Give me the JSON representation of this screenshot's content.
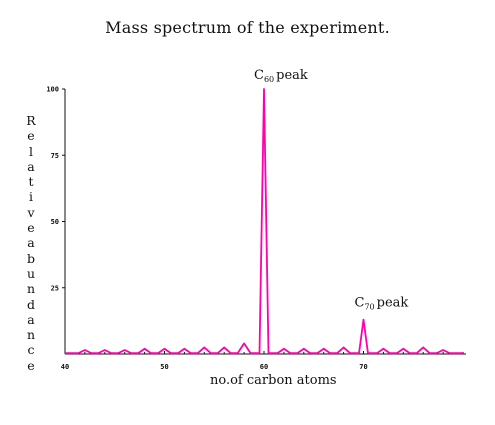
{
  "chart_data": {
    "type": "line",
    "title": "Mass spectrum of the experiment.",
    "xlabel": "no.of carbon atoms",
    "ylabel": "Relative abundance",
    "xlim": [
      40,
      80
    ],
    "ylim": [
      0,
      100
    ],
    "x_ticks": [
      "40",
      "50",
      "60",
      "70"
    ],
    "y_ticks": [
      "25",
      "50",
      "75",
      "100"
    ],
    "grid": false,
    "color": "#ff00aa",
    "series": [
      {
        "x": [
          42,
          44,
          46,
          48,
          50,
          52,
          54,
          56,
          58,
          60,
          62,
          64,
          66,
          68,
          70,
          72,
          74,
          76,
          78
        ],
        "values": [
          1.5,
          1.5,
          1.5,
          2,
          2,
          2,
          2.5,
          2.5,
          4,
          100,
          2,
          2,
          2,
          2.5,
          13,
          2,
          2,
          2.5,
          1.5
        ]
      }
    ],
    "annotations": [
      {
        "base": "C",
        "sub": "60",
        "suffix": "peak",
        "x": 60,
        "y": 100
      },
      {
        "base": "C",
        "sub": "70",
        "suffix": "peak",
        "x": 70,
        "y": 13
      }
    ]
  }
}
